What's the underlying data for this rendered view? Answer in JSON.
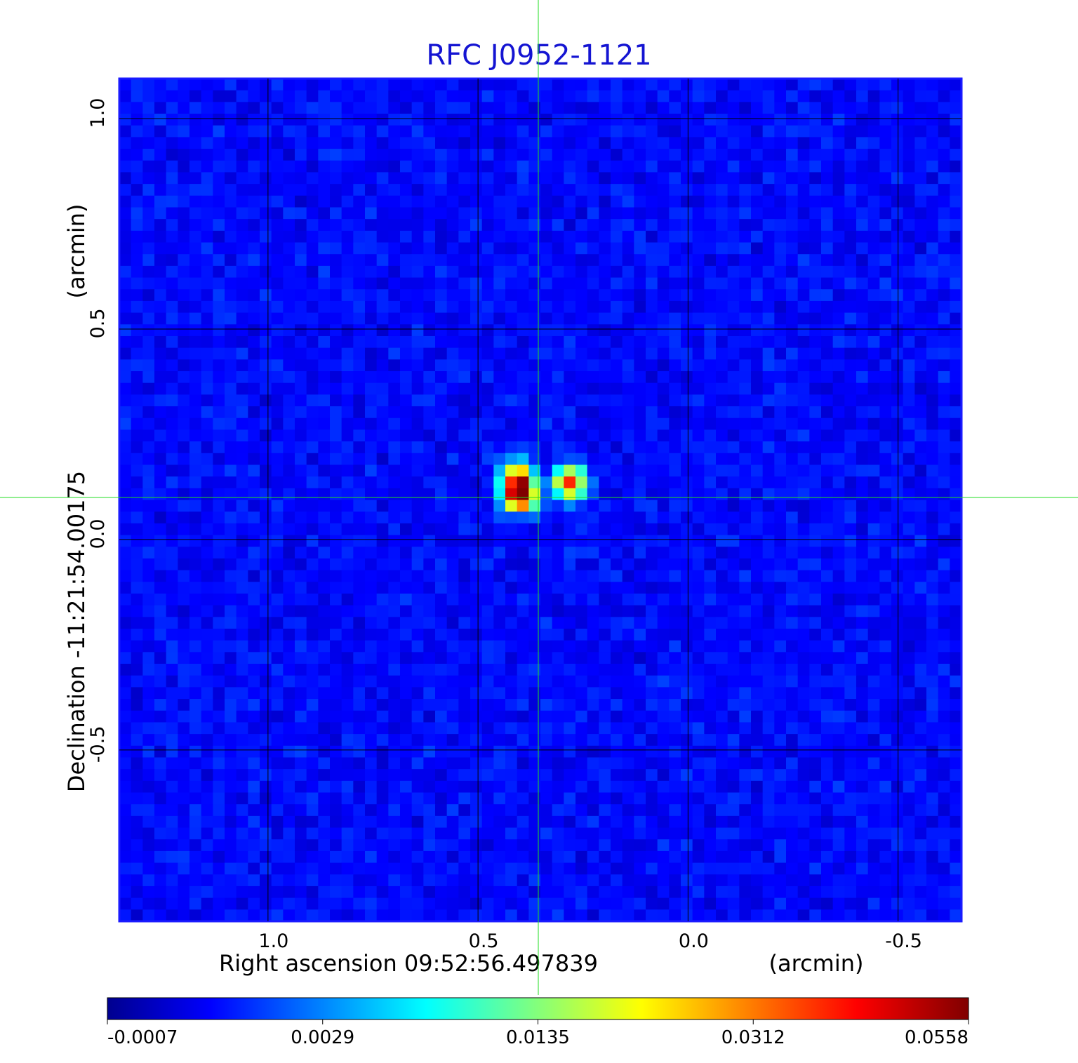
{
  "chart_data": {
    "type": "image",
    "title": "RFC J0952-1121",
    "x_label": "Right ascension  09:52:56.497839",
    "x_unit": "(arcmin)",
    "y_label": "Declination  -11:21:54.00175",
    "y_unit": "(arcmin)",
    "xlim": [
      1.354,
      -0.651
    ],
    "ylim": [
      -0.907,
      1.095
    ],
    "xticks": [
      {
        "value": 1,
        "label": "1.0"
      },
      0.5,
      {
        "value": 0,
        "label": "0.0"
      },
      -0.5
    ],
    "yticks": [
      {
        "value": 1,
        "label": "1.0"
      },
      0.5,
      {
        "value": 0,
        "label": "0.0"
      },
      -0.5
    ],
    "grid": true,
    "colorbar_lim": [
      -0.0007,
      0.0558
    ],
    "colorbar_ticks": [
      -0.0007,
      0.0029,
      0.0135,
      0.0312,
      0.0558
    ]
  }
}
